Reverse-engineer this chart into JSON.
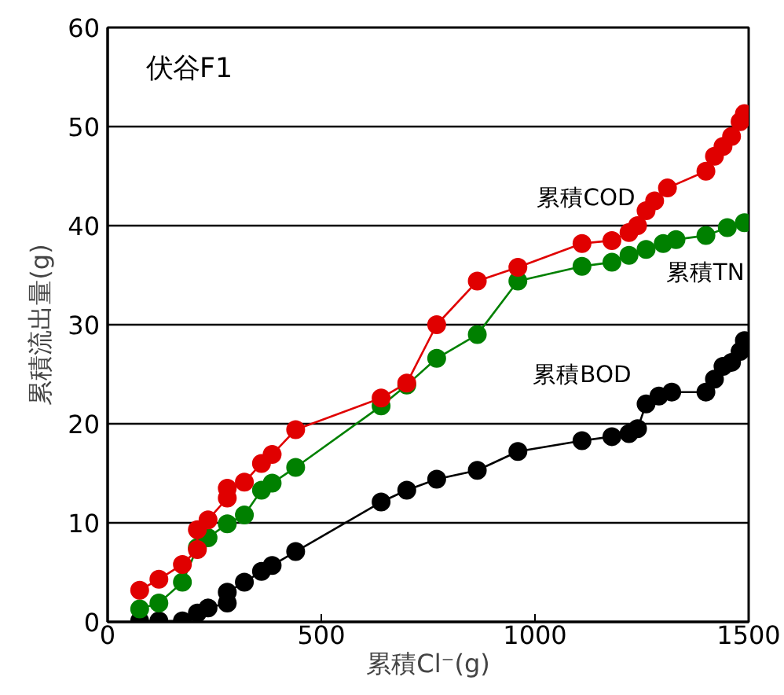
{
  "chart_data": {
    "type": "line",
    "title": "伏谷F1",
    "xlabel": "累積Cl⁻(g)",
    "ylabel": "累積流出量(g)",
    "xlim": [
      0,
      1500
    ],
    "xticks": [
      0,
      500,
      1000,
      1500
    ],
    "ylim": [
      0,
      60
    ],
    "yticks": [
      0,
      10,
      20,
      30,
      40,
      50,
      60
    ],
    "grid": "y",
    "marker": "circle",
    "line_style": "solid",
    "series": [
      {
        "name": "累積COD",
        "color": "#e00000",
        "x": [
          75,
          120,
          175,
          210,
          210,
          235,
          280,
          280,
          320,
          360,
          385,
          440,
          640,
          700,
          770,
          865,
          960,
          1110,
          1180,
          1220,
          1240,
          1260,
          1280,
          1310,
          1400,
          1420,
          1440,
          1460,
          1480,
          1490
        ],
        "values": [
          3.2,
          4.3,
          5.8,
          7.3,
          9.3,
          10.3,
          12.5,
          13.5,
          14.1,
          16.0,
          16.9,
          19.4,
          22.6,
          24.1,
          30.0,
          34.4,
          35.8,
          38.2,
          38.5,
          39.3,
          40.0,
          41.5,
          42.5,
          43.8,
          45.5,
          47.0,
          48.0,
          49.0,
          50.5,
          51.3
        ]
      },
      {
        "name": "累積TN",
        "color": "#008000",
        "x": [
          75,
          120,
          175,
          210,
          235,
          280,
          320,
          360,
          385,
          440,
          640,
          700,
          770,
          865,
          960,
          1110,
          1180,
          1220,
          1260,
          1300,
          1330,
          1400,
          1450,
          1490
        ],
        "values": [
          1.3,
          1.9,
          4.0,
          7.5,
          8.5,
          9.9,
          10.8,
          13.3,
          14.0,
          15.6,
          21.8,
          23.9,
          26.6,
          29.0,
          34.4,
          35.9,
          36.3,
          37.0,
          37.6,
          38.2,
          38.6,
          39.0,
          39.8,
          40.3
        ]
      },
      {
        "name": "累積BOD",
        "color": "#000000",
        "x": [
          75,
          120,
          175,
          210,
          235,
          280,
          280,
          320,
          360,
          385,
          440,
          640,
          700,
          770,
          865,
          960,
          1110,
          1180,
          1220,
          1240,
          1260,
          1290,
          1320,
          1400,
          1420,
          1440,
          1460,
          1480,
          1490
        ],
        "values": [
          0.1,
          0.1,
          0.1,
          0.9,
          1.4,
          1.9,
          3.0,
          4.0,
          5.1,
          5.7,
          7.1,
          12.1,
          13.3,
          14.4,
          15.3,
          17.2,
          18.3,
          18.7,
          19.0,
          19.5,
          22.0,
          22.8,
          23.2,
          23.2,
          24.5,
          25.8,
          26.2,
          27.3,
          28.4
        ]
      }
    ]
  }
}
